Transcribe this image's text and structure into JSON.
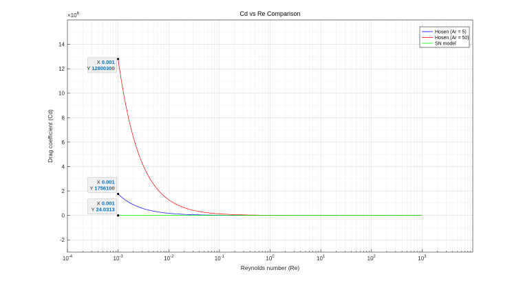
{
  "chart_data": {
    "type": "line",
    "title": "Cd vs Re Comparison",
    "xlabel": "Reynolds number (Re)",
    "ylabel": "Drag coefficient (Cd)",
    "xscale": "log",
    "xlim": [
      0.0001,
      10000
    ],
    "ylim": [
      -3,
      16
    ],
    "y_multiplier_label": "×10^6",
    "y_multiplier": 1000000,
    "grid": "on (major and minor)",
    "legend_position": "top-right",
    "x_tick_labels": [
      {
        "base": "10",
        "exp": "-4",
        "value": 0.0001
      },
      {
        "base": "10",
        "exp": "-3",
        "value": 0.001
      },
      {
        "base": "10",
        "exp": "-2",
        "value": 0.01
      },
      {
        "base": "10",
        "exp": "-1",
        "value": 0.1
      },
      {
        "base": "10",
        "exp": "0",
        "value": 1
      },
      {
        "base": "10",
        "exp": "1",
        "value": 10
      },
      {
        "base": "10",
        "exp": "2",
        "value": 100
      },
      {
        "base": "10",
        "exp": "3",
        "value": 1000
      }
    ],
    "y_tick_labels": [
      "-2",
      "0",
      "2",
      "4",
      "6",
      "8",
      "10",
      "12",
      "14"
    ],
    "series": [
      {
        "name": "Hosen (Ar = 5)",
        "color": "#0000ff",
        "x": [
          0.001,
          0.002,
          0.003,
          0.005,
          0.01,
          0.02,
          0.05,
          0.1,
          1,
          10,
          100,
          1000
        ],
        "y": [
          1756100,
          878050,
          585367,
          351220,
          175610,
          87805,
          35122,
          17561,
          1756,
          176,
          18,
          2
        ]
      },
      {
        "name": "Hosen (Ar = 50)",
        "color": "#ff0000",
        "x": [
          0.001,
          0.002,
          0.003,
          0.005,
          0.01,
          0.02,
          0.05,
          0.1,
          1,
          10,
          100,
          1000
        ],
        "y": [
          12800300,
          6400150,
          4266767,
          2560060,
          1280030,
          640015,
          256006,
          128003,
          12800,
          1280,
          128,
          13
        ]
      },
      {
        "name": "SN model",
        "color": "#00ff00",
        "x": [
          0.001,
          0.01,
          0.1,
          1,
          10,
          100,
          1000
        ],
        "y": [
          24.0313,
          2.4,
          0.5,
          0.3,
          0.2,
          0.15,
          0.1
        ]
      }
    ],
    "datatips": [
      {
        "x_label": "X",
        "x_value": "0.001",
        "y_label": "Y",
        "y_value": "12800300",
        "x": 0.001,
        "y": 12800300
      },
      {
        "x_label": "X",
        "x_value": "0.001",
        "y_label": "Y",
        "y_value": "1756100",
        "x": 0.001,
        "y": 1756100
      },
      {
        "x_label": "X",
        "x_value": "0.001",
        "y_label": "Y",
        "y_value": "24.0313",
        "x": 0.001,
        "y": 24.0313
      }
    ]
  }
}
